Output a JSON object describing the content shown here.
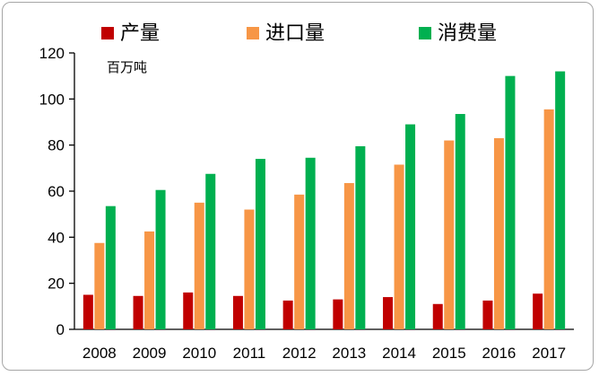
{
  "chart_data": {
    "type": "bar",
    "unit_label": "百万吨",
    "categories": [
      "2008",
      "2009",
      "2010",
      "2011",
      "2012",
      "2013",
      "2014",
      "2015",
      "2016",
      "2017"
    ],
    "series": [
      {
        "name": "产量",
        "color": "#c00000",
        "values": [
          15,
          14.5,
          16,
          14.5,
          12.5,
          13,
          14,
          11,
          12.5,
          15.5
        ]
      },
      {
        "name": "进口量",
        "color": "#f79646",
        "values": [
          37.5,
          42.5,
          55,
          52,
          58.5,
          63.5,
          71.5,
          82,
          83,
          95.5
        ]
      },
      {
        "name": "消费量",
        "color": "#00b050",
        "values": [
          53.5,
          60.5,
          67.5,
          74,
          74.5,
          79.5,
          89,
          93.5,
          110,
          112
        ]
      }
    ],
    "ylim": [
      0,
      120
    ],
    "yticks": [
      0,
      20,
      40,
      60,
      80,
      100,
      120
    ],
    "legend_position": "top",
    "grid": false
  }
}
